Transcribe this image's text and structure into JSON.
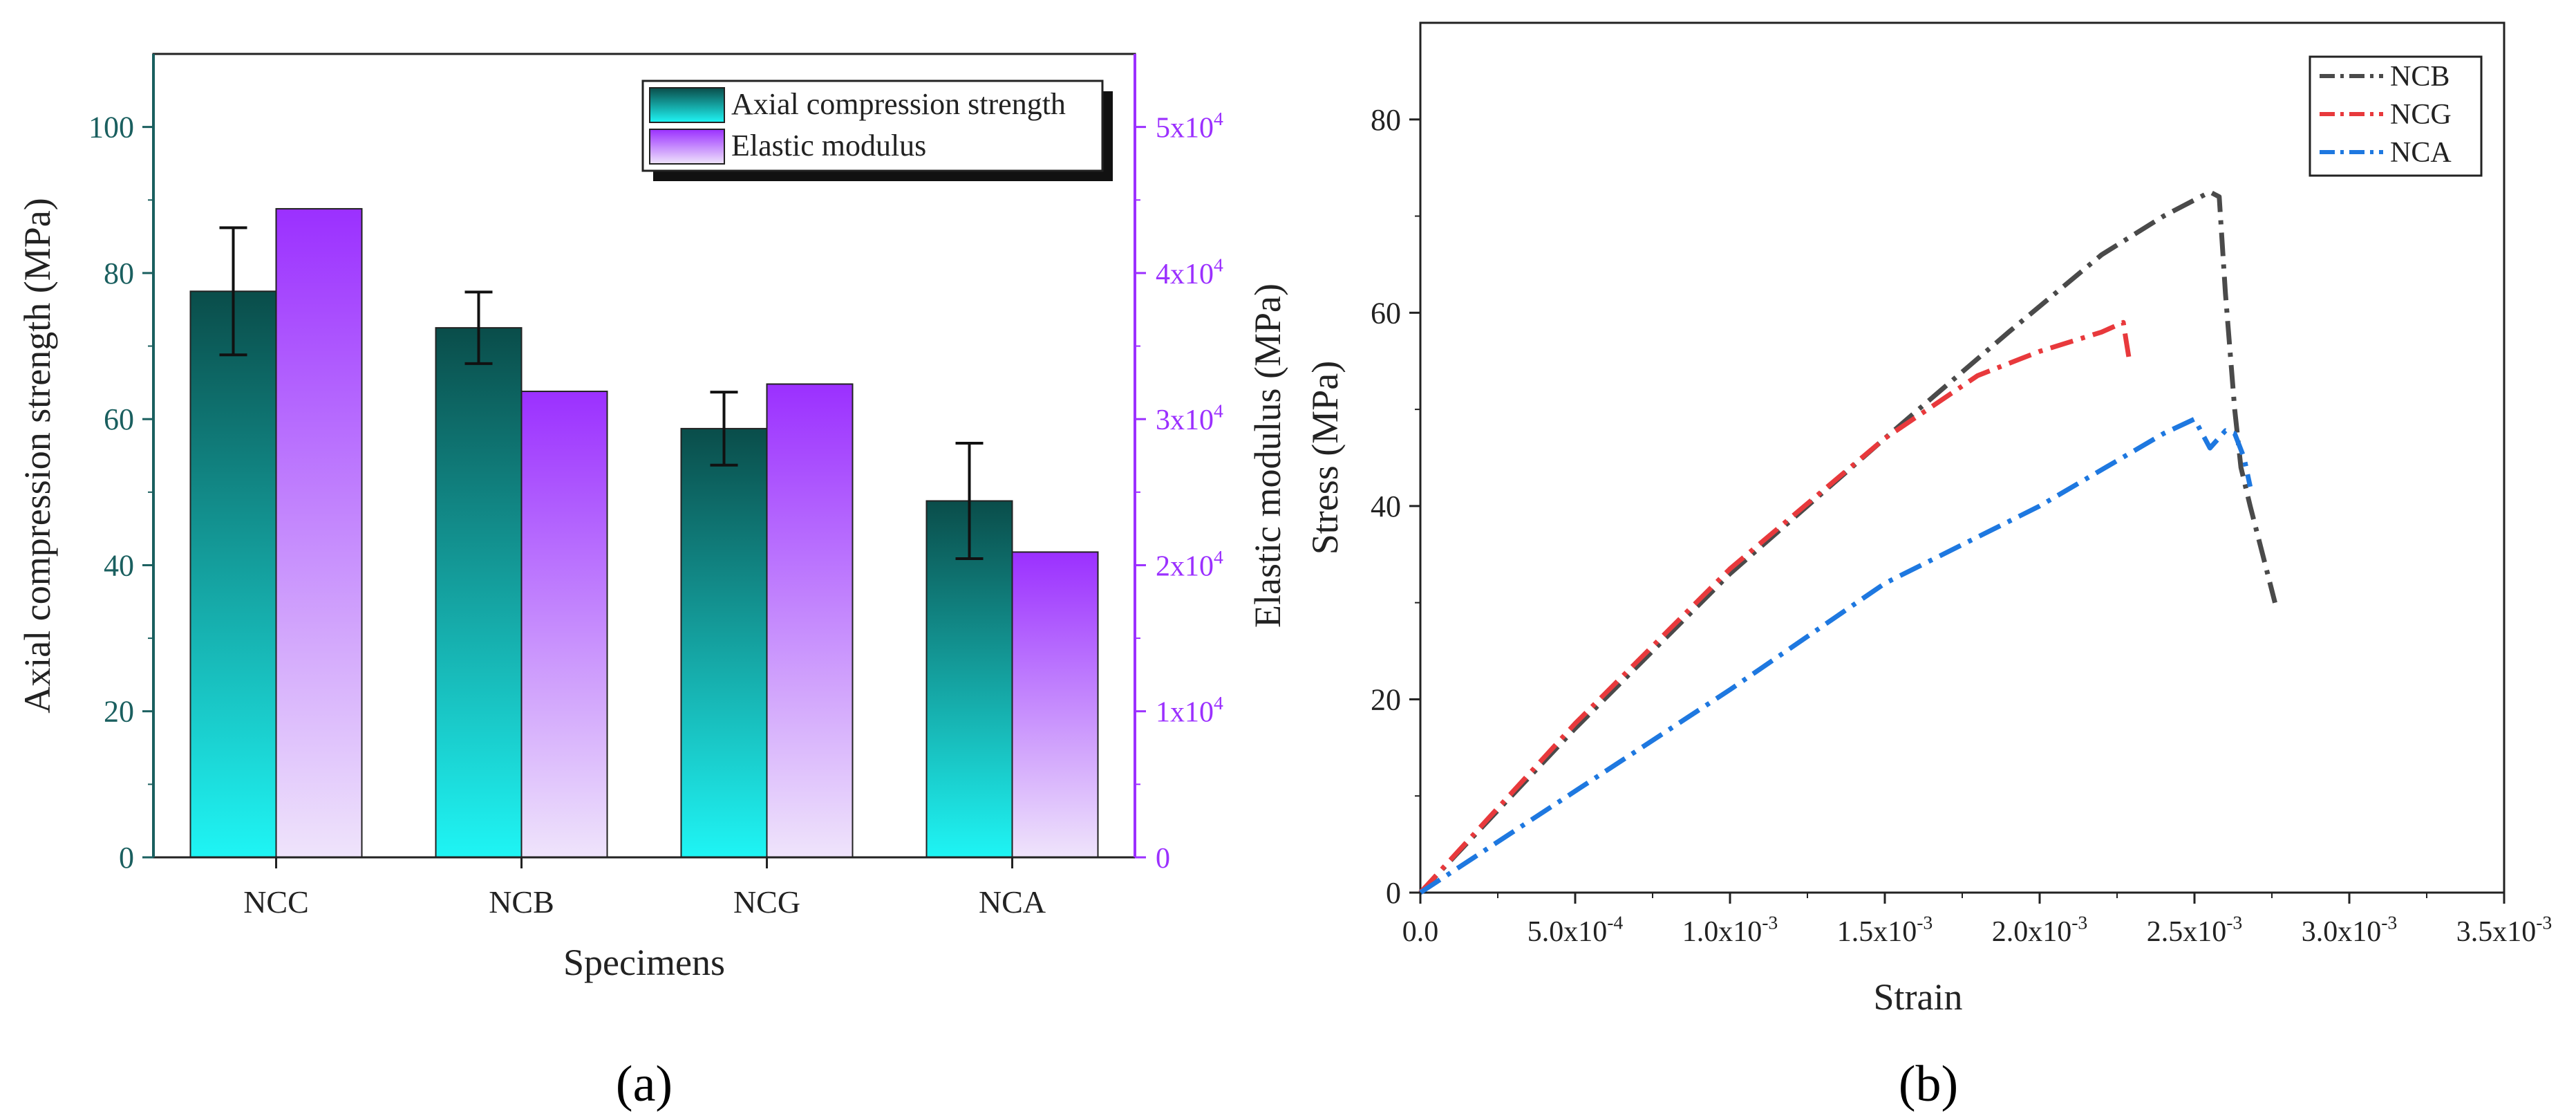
{
  "chart_data": [
    {
      "type": "bar",
      "panel_label": "(a)",
      "xlabel": "Specimens",
      "ylabel": "Axial compression strength (MPa)",
      "y2label": "Elastic modulus (MPa)",
      "categories": [
        "NCC",
        "NCB",
        "NCG",
        "NCA"
      ],
      "ylim": [
        0,
        110
      ],
      "yticks": [
        0,
        20,
        40,
        60,
        80,
        100
      ],
      "y2lim": [
        0,
        55000
      ],
      "y2ticks": [
        {
          "value": 0,
          "mantissa": "0",
          "exp": ""
        },
        {
          "value": 10000,
          "mantissa": "1x10",
          "exp": "4"
        },
        {
          "value": 20000,
          "mantissa": "2x10",
          "exp": "4"
        },
        {
          "value": 30000,
          "mantissa": "3x10",
          "exp": "4"
        },
        {
          "value": 40000,
          "mantissa": "4x10",
          "exp": "4"
        },
        {
          "value": 50000,
          "mantissa": "5x10",
          "exp": "4"
        }
      ],
      "series": [
        {
          "name": "Axial compression strength",
          "axis": "left",
          "values": [
            77.5,
            72.5,
            58.7,
            48.8
          ],
          "errors": [
            8.7,
            4.9,
            5.0,
            7.9
          ]
        },
        {
          "name": "Elastic modulus",
          "axis": "right",
          "values": [
            44400,
            31900,
            32400,
            20900
          ]
        }
      ],
      "legend": "top-right",
      "colors": {
        "axis_left": "#1a5f5f",
        "axis_right": "#9b30ff",
        "bar1_top": "#0a4d4a",
        "bar1_bottom": "#1ff5f5",
        "bar2_top": "#9b30ff",
        "bar2_bottom": "#efe4fb"
      }
    },
    {
      "type": "line",
      "panel_label": "(b)",
      "xlabel": "Strain",
      "ylabel": "Stress (MPa)",
      "xlim": [
        0,
        0.0035
      ],
      "ylim": [
        0,
        90
      ],
      "xticks": [
        {
          "value": 0,
          "mantissa": "0.0",
          "exp": ""
        },
        {
          "value": 0.0005,
          "mantissa": "5.0x10",
          "exp": "-4"
        },
        {
          "value": 0.001,
          "mantissa": "1.0x10",
          "exp": "-3"
        },
        {
          "value": 0.0015,
          "mantissa": "1.5x10",
          "exp": "-3"
        },
        {
          "value": 0.002,
          "mantissa": "2.0x10",
          "exp": "-3"
        },
        {
          "value": 0.0025,
          "mantissa": "2.5x10",
          "exp": "-3"
        },
        {
          "value": 0.003,
          "mantissa": "3.0x10",
          "exp": "-3"
        },
        {
          "value": 0.0035,
          "mantissa": "3.5x10",
          "exp": "-3"
        }
      ],
      "yticks": [
        0,
        20,
        40,
        60,
        80
      ],
      "legend": "top-right",
      "series": [
        {
          "name": "NCB",
          "color": "#4a4a4a",
          "x": [
            0,
            0.0005,
            0.001,
            0.0015,
            0.0019,
            0.0022,
            0.0024,
            0.00255,
            0.00258,
            0.0026,
            0.00263,
            0.00265,
            0.00268,
            0.00272,
            0.00276
          ],
          "y": [
            0,
            17,
            33,
            47,
            58,
            66,
            70,
            72.5,
            72,
            62,
            50,
            44,
            40,
            35,
            30
          ]
        },
        {
          "name": "NCG",
          "color": "#e8393c",
          "x": [
            0,
            0.0005,
            0.001,
            0.0015,
            0.0018,
            0.002,
            0.0022,
            0.00227,
            0.00228,
            0.00229
          ],
          "y": [
            0,
            17.5,
            33.5,
            47,
            53.5,
            56,
            58,
            59,
            57,
            55
          ]
        },
        {
          "name": "NCA",
          "color": "#1e78e0",
          "x": [
            0,
            0.0005,
            0.001,
            0.0015,
            0.002,
            0.0024,
            0.0025,
            0.00255,
            0.0026,
            0.00263,
            0.00266,
            0.00268
          ],
          "y": [
            0,
            10.5,
            21,
            32,
            40,
            47.5,
            49,
            46,
            47.8,
            47.5,
            45,
            42
          ]
        }
      ]
    }
  ]
}
